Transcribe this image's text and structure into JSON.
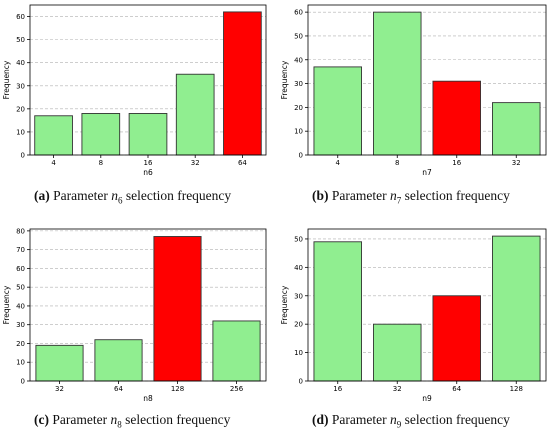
{
  "colors": {
    "bar": "#90ee90",
    "highlight": "#ff0000",
    "edge": "#333333",
    "grid": "#b0b0b0"
  },
  "chart_data": [
    {
      "type": "bar",
      "categories": [
        "4",
        "8",
        "16",
        "32",
        "64"
      ],
      "values": [
        17,
        18,
        18,
        35,
        62
      ],
      "highlight": [
        "64"
      ],
      "xlabel": "n6",
      "ylabel": "Frequency",
      "ylim": [
        0,
        65
      ],
      "yticks": [
        0,
        10,
        20,
        30,
        40,
        50,
        60
      ],
      "grid": "y-dashed",
      "caption": {
        "letter": "(a)",
        "prefix": "Parameter",
        "var": "n",
        "sub": "6",
        "suffix": "selection frequency"
      }
    },
    {
      "type": "bar",
      "categories": [
        "4",
        "8",
        "16",
        "32"
      ],
      "values": [
        37,
        60,
        31,
        22
      ],
      "highlight": [
        "16"
      ],
      "xlabel": "n7",
      "ylabel": "Frequency",
      "ylim": [
        0,
        63
      ],
      "yticks": [
        0,
        10,
        20,
        30,
        40,
        50,
        60
      ],
      "grid": "y-dashed",
      "caption": {
        "letter": "(b)",
        "prefix": "Parameter",
        "var": "n",
        "sub": "7",
        "suffix": "selection frequency"
      }
    },
    {
      "type": "bar",
      "categories": [
        "32",
        "64",
        "128",
        "256"
      ],
      "values": [
        19,
        22,
        77,
        32
      ],
      "highlight": [
        "128"
      ],
      "xlabel": "n8",
      "ylabel": "Frequency",
      "ylim": [
        0,
        81
      ],
      "yticks": [
        0,
        10,
        20,
        30,
        40,
        50,
        60,
        70,
        80
      ],
      "grid": "y-dashed",
      "caption": {
        "letter": "(c)",
        "prefix": "Parameter",
        "var": "n",
        "sub": "8",
        "suffix": "selection frequency"
      }
    },
    {
      "type": "bar",
      "categories": [
        "16",
        "32",
        "64",
        "128"
      ],
      "values": [
        49,
        20,
        30,
        51
      ],
      "highlight": [
        "64"
      ],
      "xlabel": "n9",
      "ylabel": "Frequency",
      "ylim": [
        0,
        53.5
      ],
      "yticks": [
        0,
        10,
        20,
        30,
        40,
        50
      ],
      "grid": "y-dashed",
      "caption": {
        "letter": "(d)",
        "prefix": "Parameter",
        "var": "n",
        "sub": "9",
        "suffix": "selection frequency"
      }
    }
  ]
}
